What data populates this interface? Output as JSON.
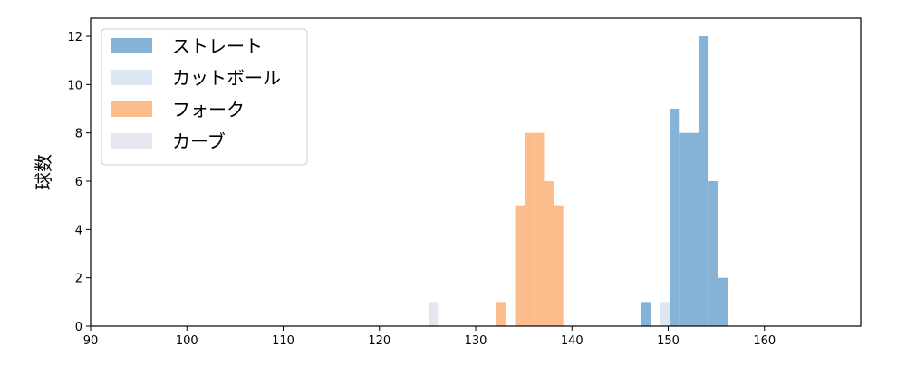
{
  "chart_data": {
    "type": "bar",
    "title": "",
    "xlabel": "",
    "ylabel": "球数",
    "xlim": [
      90,
      170
    ],
    "ylim": [
      0,
      12.75
    ],
    "xticks": [
      90,
      100,
      110,
      120,
      130,
      140,
      150,
      160
    ],
    "yticks": [
      0,
      2,
      4,
      6,
      8,
      10,
      12
    ],
    "bin_width": 1,
    "legend_position": "upper-left",
    "series": [
      {
        "name": "ストレート",
        "color": "#84b3d7",
        "bins": [
          [
            147.2,
            1
          ],
          [
            150.2,
            9
          ],
          [
            151.2,
            8
          ],
          [
            152.2,
            8
          ],
          [
            153.2,
            12
          ],
          [
            154.2,
            6
          ],
          [
            155.2,
            2
          ]
        ]
      },
      {
        "name": "カットボール",
        "color": "#dce7f3",
        "bins": [
          [
            149.2,
            1
          ]
        ]
      },
      {
        "name": "フォーク",
        "color": "#fdbc8c",
        "bins": [
          [
            132.1,
            1
          ],
          [
            134.1,
            5
          ],
          [
            135.1,
            8
          ],
          [
            136.1,
            8
          ],
          [
            137.1,
            6
          ],
          [
            138.1,
            5
          ]
        ]
      },
      {
        "name": "カーブ",
        "color": "#e6e6f1",
        "bins": [
          [
            125.1,
            1
          ]
        ]
      }
    ]
  }
}
